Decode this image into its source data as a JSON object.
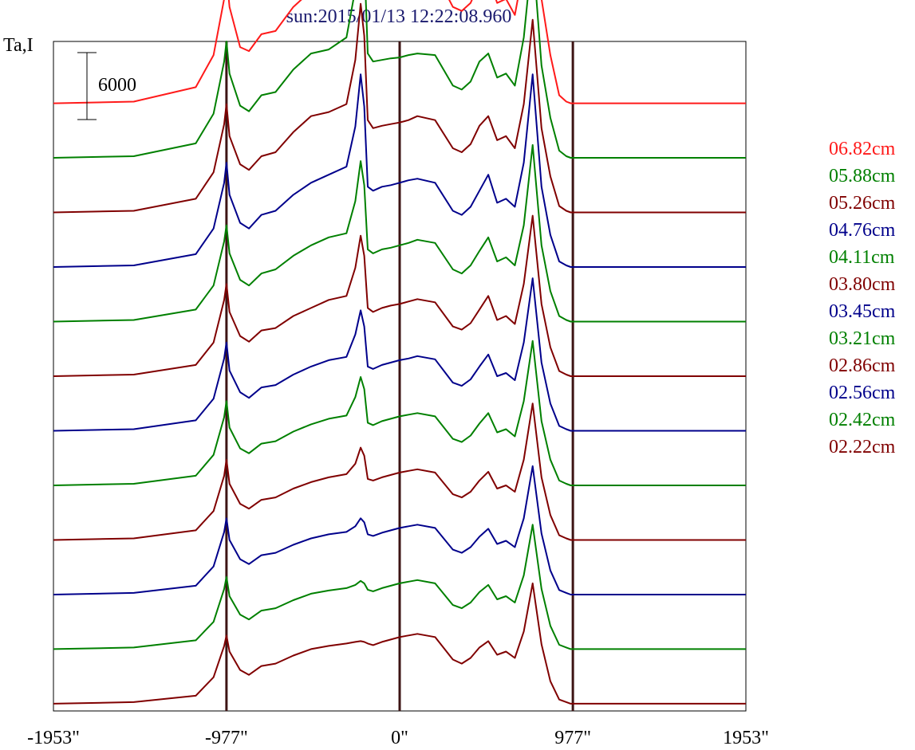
{
  "chart_data": {
    "type": "line",
    "title": "sun:2015/01/13 12:22:08.960",
    "ylabel": "Ta,I",
    "scale_bar_label": "6000",
    "scale_bar_value": 6000,
    "x_ticks": [
      {
        "value": -1953,
        "label": "-1953\""
      },
      {
        "value": -977,
        "label": "-977\""
      },
      {
        "value": 0,
        "label": "0\""
      },
      {
        "value": 977,
        "label": "977\""
      },
      {
        "value": 1953,
        "label": "1953\""
      }
    ],
    "xlim": [
      -1953,
      1953
    ],
    "ylim": [
      -900,
      82500
    ],
    "vertical_lines": [
      -977,
      0,
      977
    ],
    "offset_step": 6800,
    "x": [
      -1953,
      -1500,
      -1150,
      -1050,
      -990,
      -977,
      -960,
      -900,
      -850,
      -780,
      -700,
      -600,
      -500,
      -400,
      -300,
      -250,
      -220,
      -200,
      -180,
      -150,
      -100,
      -50,
      0,
      50,
      100,
      200,
      300,
      350,
      400,
      450,
      500,
      550,
      600,
      650,
      700,
      750,
      800,
      850,
      900,
      940,
      965,
      985,
      1010,
      1050,
      1150,
      1500,
      1953
    ],
    "series": [
      {
        "name": "06.82cm",
        "color": "#ff1a1a",
        "offset": 74800,
        "values": [
          0,
          200,
          2000,
          6000,
          13000,
          16000,
          12000,
          7000,
          6500,
          8600,
          9000,
          12000,
          14000,
          15000,
          17000,
          23000,
          30000,
          27000,
          16000,
          15500,
          15500,
          15700,
          15800,
          16000,
          16500,
          16300,
          12000,
          11500,
          12500,
          15000,
          15700,
          12500,
          13000,
          11000,
          17000,
          28000,
          13000,
          6000,
          1000,
          200,
          0,
          0,
          0,
          0,
          0,
          0,
          0
        ]
      },
      {
        "name": "05.88cm",
        "color": "#008000",
        "offset": 68000,
        "values": [
          0,
          200,
          1800,
          5500,
          12000,
          14500,
          10500,
          6500,
          5800,
          7800,
          8200,
          11000,
          13000,
          13500,
          15000,
          21000,
          28000,
          25000,
          13000,
          12000,
          12200,
          12400,
          12500,
          12800,
          13000,
          12800,
          9000,
          8500,
          9500,
          12000,
          13000,
          10000,
          10500,
          9000,
          15000,
          26000,
          11500,
          5000,
          900,
          200,
          0,
          0,
          0,
          0,
          0,
          0,
          0
        ]
      },
      {
        "name": "05.26cm",
        "color": "#800000",
        "offset": 61200,
        "values": [
          0,
          200,
          1700,
          5000,
          11000,
          13500,
          9500,
          6000,
          5300,
          7000,
          7500,
          10000,
          12000,
          12500,
          13500,
          19000,
          26000,
          22000,
          11500,
          10500,
          10800,
          11000,
          11200,
          11500,
          12000,
          11500,
          8000,
          7500,
          8500,
          10800,
          12000,
          9000,
          9500,
          8000,
          13500,
          24000,
          10500,
          4500,
          800,
          200,
          0,
          0,
          0,
          0,
          0,
          0,
          0
        ]
      },
      {
        "name": "04.76cm",
        "color": "#00008b",
        "offset": 54400,
        "values": [
          0,
          200,
          1600,
          4800,
          10500,
          13000,
          9000,
          5500,
          4800,
          6500,
          7000,
          9000,
          10500,
          11500,
          12500,
          17500,
          24000,
          20000,
          10000,
          9500,
          10000,
          10200,
          10500,
          10800,
          11000,
          10500,
          7000,
          6500,
          7500,
          9500,
          11500,
          8000,
          8500,
          7500,
          13000,
          24000,
          10000,
          4000,
          700,
          200,
          0,
          0,
          0,
          0,
          0,
          0,
          0
        ]
      },
      {
        "name": "04.11cm",
        "color": "#008000",
        "offset": 47600,
        "values": [
          0,
          200,
          1500,
          4500,
          10000,
          12000,
          8500,
          5200,
          4500,
          6000,
          6500,
          8200,
          9500,
          10500,
          11000,
          15000,
          20000,
          17000,
          9000,
          8500,
          9000,
          9200,
          9500,
          9800,
          10200,
          9800,
          6500,
          6000,
          7000,
          8800,
          10500,
          7500,
          8000,
          7000,
          12000,
          22000,
          9500,
          3800,
          700,
          200,
          0,
          0,
          0,
          0,
          0,
          0,
          0
        ]
      },
      {
        "name": "03.80cm",
        "color": "#800000",
        "offset": 40800,
        "values": [
          0,
          200,
          1400,
          4200,
          9500,
          11500,
          8000,
          5000,
          4300,
          5700,
          6000,
          7500,
          8500,
          9500,
          10000,
          13500,
          17500,
          15000,
          8500,
          8000,
          8500,
          8800,
          9000,
          9300,
          9600,
          9200,
          6200,
          5800,
          6600,
          8300,
          10000,
          7000,
          7500,
          6500,
          11500,
          20000,
          9000,
          3600,
          650,
          200,
          0,
          0,
          0,
          0,
          0,
          0,
          0
        ]
      },
      {
        "name": "03.45cm",
        "color": "#00008b",
        "offset": 34000,
        "values": [
          0,
          200,
          1300,
          4000,
          9000,
          11000,
          7500,
          4800,
          4100,
          5400,
          5700,
          7000,
          8000,
          8800,
          9200,
          12000,
          15000,
          13000,
          8000,
          7700,
          8200,
          8500,
          8800,
          9000,
          9300,
          8900,
          6000,
          5600,
          6400,
          8000,
          9500,
          6800,
          7200,
          6300,
          11000,
          19000,
          8500,
          3400,
          600,
          200,
          0,
          0,
          0,
          0,
          0,
          0,
          0
        ]
      },
      {
        "name": "03.21cm",
        "color": "#008000",
        "offset": 27200,
        "values": [
          0,
          200,
          1200,
          3800,
          8500,
          10500,
          7200,
          4600,
          4000,
          5200,
          5500,
          6700,
          7600,
          8300,
          8700,
          11000,
          13500,
          12000,
          7800,
          7500,
          8000,
          8300,
          8600,
          8800,
          9000,
          8600,
          5800,
          5400,
          6200,
          7700,
          9000,
          6600,
          7000,
          6100,
          10500,
          18000,
          8000,
          3200,
          600,
          200,
          0,
          0,
          0,
          0,
          0,
          0,
          0
        ]
      },
      {
        "name": "02.86cm",
        "color": "#800000",
        "offset": 20400,
        "values": [
          0,
          200,
          1200,
          3600,
          8000,
          10000,
          7000,
          4500,
          3900,
          5000,
          5300,
          6400,
          7200,
          7800,
          8200,
          9500,
          11500,
          10500,
          7600,
          7400,
          7800,
          8100,
          8400,
          8600,
          8800,
          8400,
          5700,
          5300,
          6000,
          7400,
          8500,
          6400,
          6800,
          6000,
          10000,
          17000,
          7800,
          3100,
          580,
          200,
          0,
          0,
          0,
          0,
          0,
          0,
          0
        ]
      },
      {
        "name": "02.56cm",
        "color": "#00008b",
        "offset": 13600,
        "values": [
          0,
          200,
          1100,
          3500,
          7800,
          9500,
          6800,
          4400,
          3800,
          4900,
          5200,
          6200,
          7000,
          7500,
          7800,
          8500,
          9500,
          9000,
          7500,
          7300,
          7700,
          8000,
          8300,
          8500,
          8700,
          8300,
          5600,
          5200,
          5900,
          7200,
          8200,
          6300,
          6700,
          5900,
          9500,
          16000,
          7600,
          3000,
          560,
          200,
          0,
          0,
          0,
          0,
          0,
          0,
          0
        ]
      },
      {
        "name": "02.42cm",
        "color": "#008000",
        "offset": 6800,
        "values": [
          0,
          200,
          1100,
          3400,
          7500,
          9000,
          6600,
          4300,
          3700,
          4800,
          5100,
          6100,
          6900,
          7300,
          7600,
          8000,
          8500,
          8200,
          7400,
          7200,
          7600,
          7900,
          8200,
          8400,
          8600,
          8200,
          5500,
          5100,
          5800,
          7100,
          8000,
          6200,
          6600,
          5800,
          9200,
          15500,
          7500,
          2900,
          540,
          200,
          0,
          0,
          0,
          0,
          0,
          0,
          0
        ]
      },
      {
        "name": "02.22cm",
        "color": "#800000",
        "offset": 0,
        "values": [
          0,
          200,
          1000,
          3300,
          7200,
          8500,
          6500,
          4200,
          3600,
          4700,
          5000,
          6000,
          6800,
          7200,
          7500,
          7700,
          7800,
          7700,
          7500,
          7300,
          7700,
          8000,
          8300,
          8500,
          8700,
          8300,
          5500,
          5000,
          5700,
          7000,
          7800,
          6100,
          6500,
          5700,
          9000,
          15000,
          7400,
          2800,
          520,
          200,
          0,
          0,
          0,
          0,
          0,
          0,
          0
        ]
      }
    ]
  }
}
